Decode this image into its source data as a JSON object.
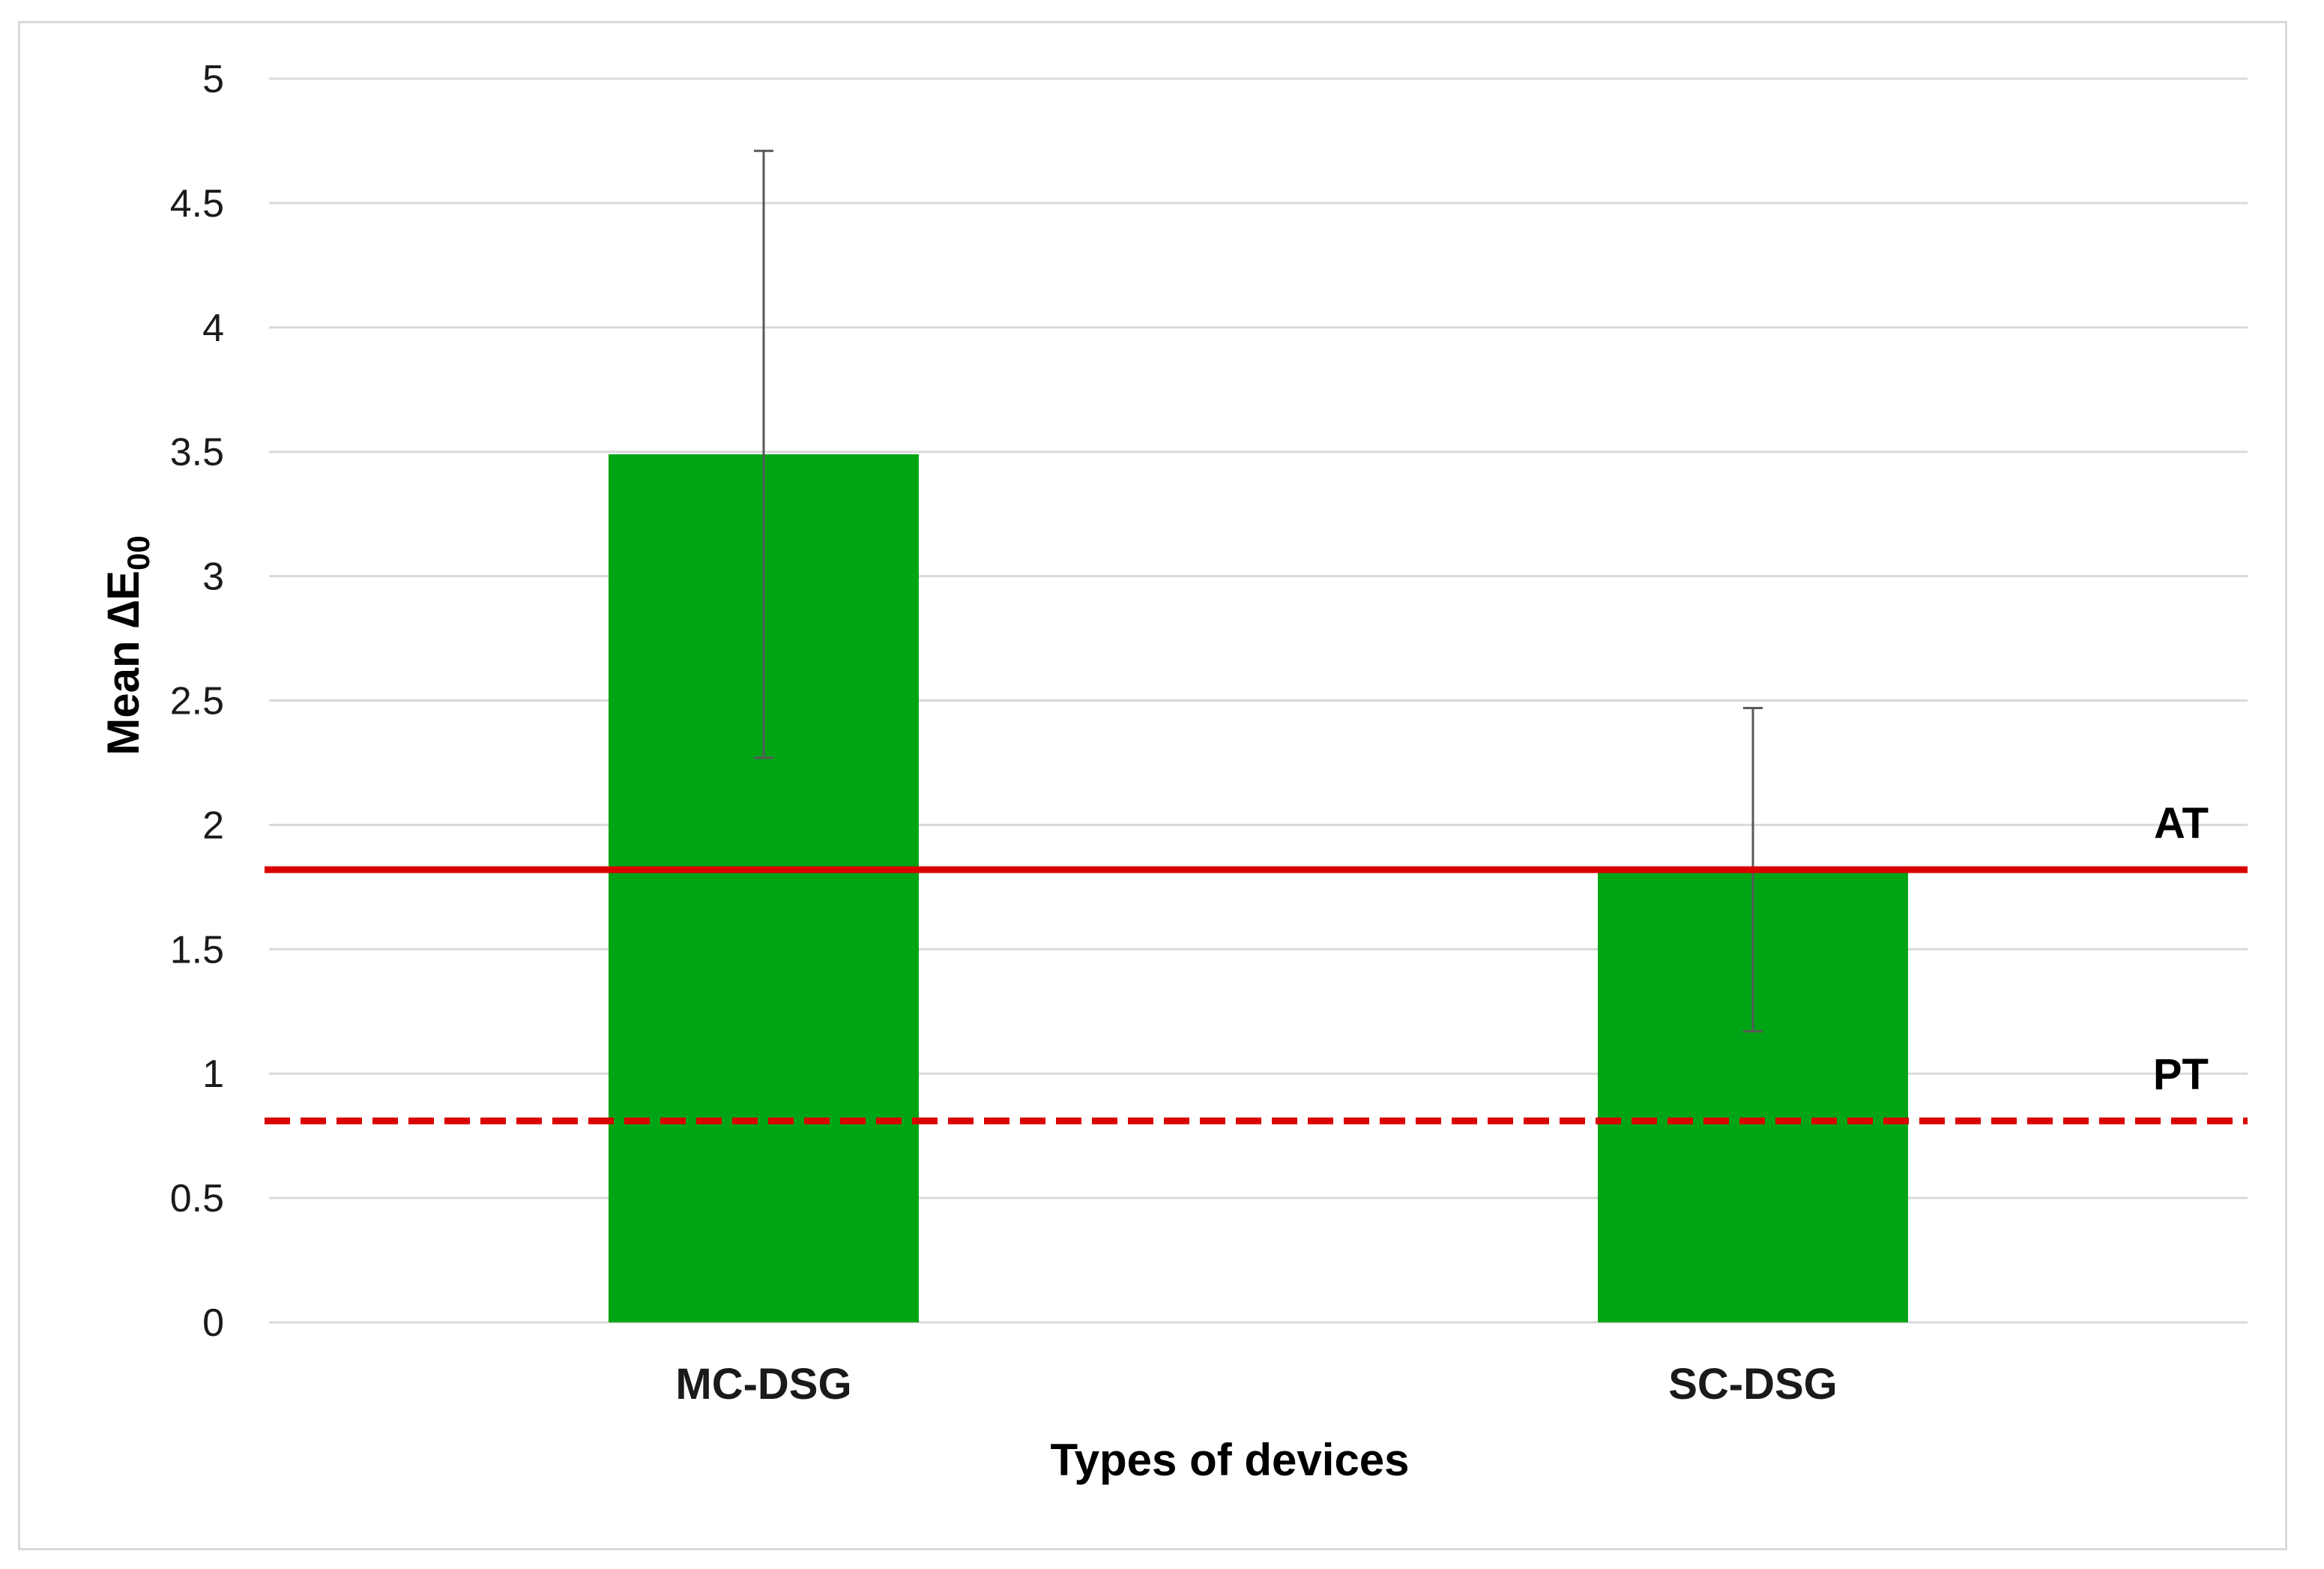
{
  "chart_data": {
    "type": "bar",
    "xlabel": "Types of devices",
    "ylabel": "Mean ∆E",
    "ylabel_subscript": "00",
    "ylim": [
      0,
      5
    ],
    "yticks": [
      "0",
      "0.5",
      "1",
      "1.5",
      "2",
      "2.5",
      "3",
      "3.5",
      "4",
      "4.5",
      "5"
    ],
    "grid": true,
    "categories": [
      "MC-DSG",
      "SC-DSG"
    ],
    "values": [
      3.49,
      1.81
    ],
    "error_bars": [
      {
        "low": 2.27,
        "high": 4.71
      },
      {
        "low": 1.17,
        "high": 2.47
      }
    ],
    "bar_color": "#00a516",
    "reference_lines": [
      {
        "label": "AT",
        "value": 1.82,
        "style": "solid",
        "color": "#d90000"
      },
      {
        "label": "PT",
        "value": 0.81,
        "style": "dashed",
        "color": "#d90000"
      }
    ]
  }
}
